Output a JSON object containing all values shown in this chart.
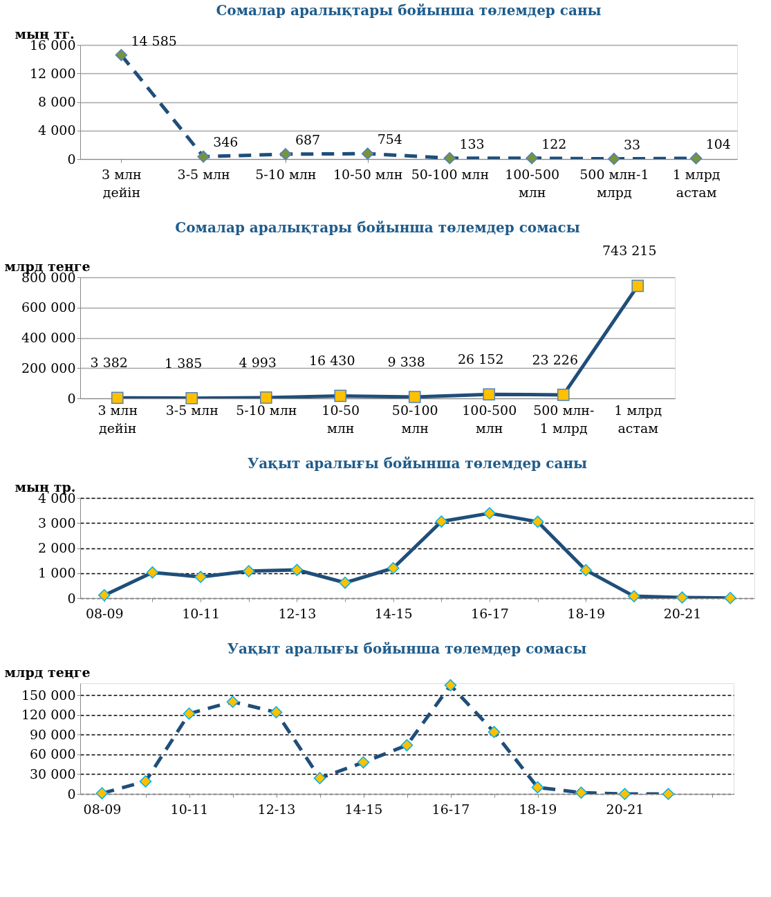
{
  "chart_data": [
    {
      "type": "line",
      "title": "Сомалар аралықтары бойынша төлемдер саны",
      "ylabel": "мың тг.",
      "categories": [
        "3 млн\nдейін",
        "3-5 млн",
        "5-10 млн",
        "10-50 млн",
        "50-100 млн",
        "100-500\nмлн",
        "500 млн-1\nмлрд",
        "1 млрд\nастам"
      ],
      "series": [
        {
          "color": "#1f4e79",
          "values": [
            14585,
            346,
            687,
            754,
            133,
            122,
            33,
            104
          ],
          "value_labels": [
            "14 585",
            "346",
            "687",
            "754",
            "133",
            "122",
            "33",
            "104"
          ]
        }
      ],
      "ylim": [
        0,
        16000
      ],
      "yticks": [
        0,
        {
          "value": 4000,
          "label": "4 000"
        },
        {
          "value": 8000,
          "label": "8 000"
        },
        {
          "value": 12000,
          "label": "12 000"
        },
        {
          "value": 16000,
          "label": "16 000"
        }
      ],
      "grid": "y",
      "marker": "diamond",
      "line_style": "dashed"
    },
    {
      "type": "line",
      "title": "Сомалар аралықтары бойынша төлемдер сомасы",
      "ylabel": "млрд теңге",
      "categories": [
        "3 млн\nдейін",
        "3-5 млн",
        "5-10 млн",
        "10-50\nмлн",
        "50-100\nмлн",
        "100-500\nмлн",
        "500 млн-\n1 млрд",
        "1 млрд\nастам"
      ],
      "series": [
        {
          "color": "#1f4e79",
          "values": [
            3382,
            1385,
            4993,
            16430,
            9338,
            26152,
            23226,
            743215
          ],
          "value_labels": [
            "3 382",
            "1 385",
            "4 993",
            "16 430",
            "9 338",
            "26 152",
            "23 226",
            "743 215"
          ]
        }
      ],
      "ylim": [
        0,
        800000
      ],
      "yticks": [
        0,
        {
          "value": 200000,
          "label": "200 000"
        },
        {
          "value": 400000,
          "label": "400 000"
        },
        {
          "value": 600000,
          "label": "600 000"
        },
        {
          "value": 800000,
          "label": "800 000"
        }
      ],
      "grid": "y",
      "marker": "square",
      "line_style": "solid"
    },
    {
      "type": "line",
      "title": "Уақыт аралығы бойынша төлемдер саны",
      "ylabel": "мың тр.",
      "categories": [
        "08-09",
        null,
        "10-11",
        null,
        "12-13",
        null,
        "14-15",
        null,
        "16-17",
        null,
        "18-19",
        null,
        "20-21",
        null
      ],
      "series": [
        {
          "color": "#1f4e79",
          "values": [
            120,
            1030,
            850,
            1080,
            1130,
            620,
            1200,
            3060,
            3390,
            3050,
            1120,
            80,
            30,
            10
          ]
        }
      ],
      "ylim": [
        0,
        4000
      ],
      "yticks": [
        0,
        {
          "value": 1000,
          "label": "1 000"
        },
        {
          "value": 2000,
          "label": "2 000"
        },
        {
          "value": 3000,
          "label": "3 000"
        },
        {
          "value": 4000,
          "label": "4 000"
        }
      ],
      "grid": "y",
      "marker": "diamond",
      "line_style": "solid"
    },
    {
      "type": "line",
      "title": "Уақыт аралығы бойынша төлемдер сомасы",
      "ylabel": "млрд теңге",
      "categories": [
        "08-09",
        null,
        "10-11",
        null,
        "12-13",
        null,
        "14-15",
        null,
        "16-17",
        null,
        "18-19",
        null,
        "20-21",
        null,
        null
      ],
      "series": [
        {
          "color": "#1f4e79",
          "values": [
            1000,
            19000,
            122000,
            140000,
            124000,
            24000,
            48000,
            74000,
            165000,
            94000,
            10000,
            2000,
            0,
            0,
            null
          ]
        }
      ],
      "ylim": [
        0,
        168000
      ],
      "yticks": [
        0,
        {
          "value": 30000,
          "label": "30 000"
        },
        {
          "value": 60000,
          "label": "60 000"
        },
        {
          "value": 90000,
          "label": "90 000"
        },
        {
          "value": 120000,
          "label": "120 000"
        },
        {
          "value": 150000,
          "label": "150 000"
        }
      ],
      "grid": "y",
      "marker": "diamond",
      "line_style": "dashed"
    }
  ]
}
